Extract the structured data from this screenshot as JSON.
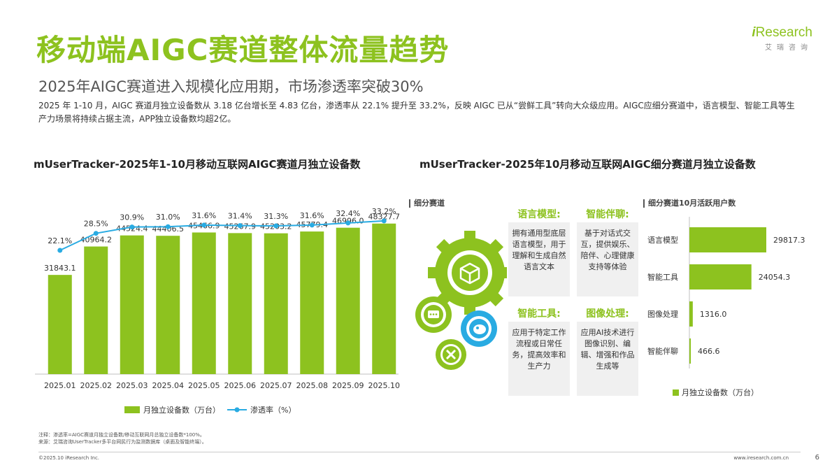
{
  "page": {
    "title": "移动端AIGC赛道整体流量趋势",
    "subtitle": "2025年AIGC赛道进入规模化应用期，市场渗透率突破30%",
    "description": "2025 年 1-10 月，AIGC 赛道月独立设备数从 3.18 亿台增长至 4.83 亿台，渗透率从 22.1% 提升至 33.2%，反映 AIGC 已从“尝鲜工具”转向大众级应用。AIGC应细分赛道中，语言模型、智能工具等生产力场景将持续占据主流，APP独立设备数均超2亿。",
    "page_number": "6"
  },
  "logo": {
    "mark": "i",
    "name": "Research",
    "sub": "艾瑞咨询"
  },
  "footer": {
    "note1": "注释：渗透率=AIGC赛道月独立设备数/移动互联网月总独立设备数*100%。",
    "note2": "来源：艾瑞咨询UserTracker多平台网民行为监测数据库（桌面及智能终端）。",
    "copyright": "©2025.10 iResearch Inc.",
    "site": "www.iresearch.com.cn"
  },
  "segments": {
    "section_label": "细分赛道",
    "items": [
      {
        "title": "语言模型:",
        "desc": "拥有通用型底层语言模型，用于理解和生成自然语言文本"
      },
      {
        "title": "智能伴聊:",
        "desc": "基于对话式交互，提供娱乐、陪伴、心理健康支持等体验"
      },
      {
        "title": "智能工具:",
        "desc": "应用于特定工作流程或日常任务，提高效率和生产力"
      },
      {
        "title": "图像处理:",
        "desc": "应用AI技术进行图像识别、编辑、增强和作品生成等"
      }
    ]
  },
  "chart_data": [
    {
      "type": "bar+line",
      "title": "mUserTracker-2025年1-10月移动互联网AIGC赛道月独立设备数",
      "categories": [
        "2025.01",
        "2025.02",
        "2025.03",
        "2025.04",
        "2025.05",
        "2025.06",
        "2025.07",
        "2025.08",
        "2025.09",
        "2025.10"
      ],
      "series": [
        {
          "name": "月独立设备数（万台）",
          "type": "bar",
          "color": "#8dc21f",
          "values": [
            31843.1,
            40964.2,
            44524.4,
            44406.5,
            45466.9,
            45267.9,
            45203.2,
            45779.4,
            46996.0,
            48327.7
          ],
          "labels": [
            "31843.1",
            "40964.2",
            "44524.4",
            "44406.5",
            "45466.9",
            "45267.9",
            "45203.2",
            "45779.4",
            "46996.0",
            "48327.7"
          ]
        },
        {
          "name": "渗透率（%）",
          "type": "line",
          "color": "#29abe2",
          "values": [
            22.1,
            28.5,
            30.9,
            31.0,
            31.6,
            31.4,
            31.3,
            31.6,
            32.4,
            33.2
          ],
          "labels": [
            "22.1%",
            "28.5%",
            "30.9%",
            "31.0%",
            "31.6%",
            "31.4%",
            "31.3%",
            "31.6%",
            "32.4%",
            "33.2%"
          ]
        }
      ],
      "legend_position": "bottom",
      "grid": false
    },
    {
      "type": "bar",
      "orientation": "horizontal",
      "title": "mUserTracker-2025年10月移动互联网AIGC细分赛道月独立设备数",
      "section_label": "细分赛道10月活跃用户数",
      "categories": [
        "语言模型",
        "智能工具",
        "图像处理",
        "智能伴聊"
      ],
      "values": [
        29817.3,
        24054.3,
        1316.0,
        466.6
      ],
      "labels": [
        "29817.3",
        "24054.3",
        "1316.0",
        "466.6"
      ],
      "legend": "月独立设备数（万台）",
      "color": "#8dc21f",
      "legend_position": "bottom"
    }
  ]
}
